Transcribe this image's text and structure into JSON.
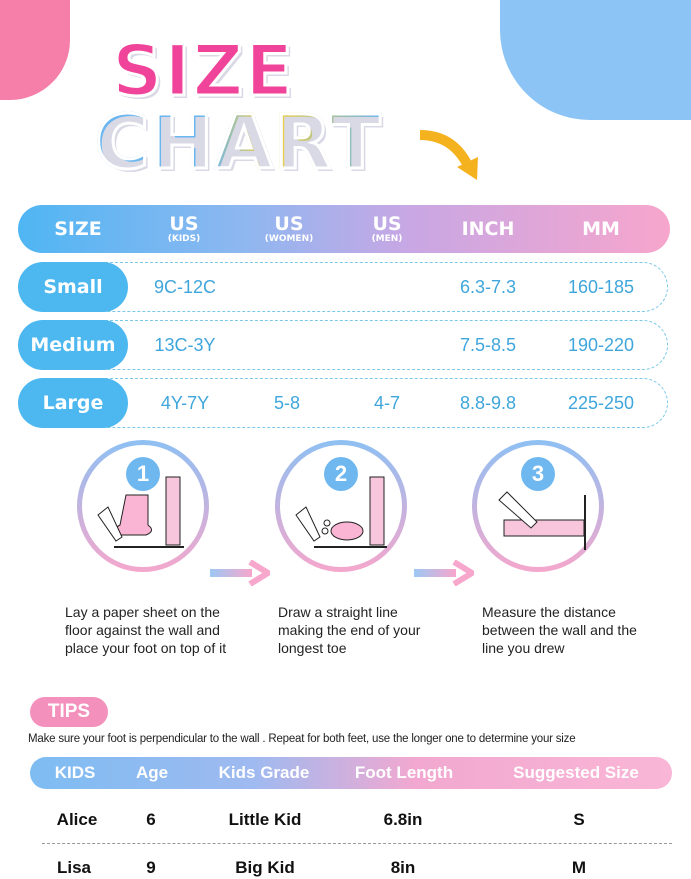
{
  "title": {
    "line1": "SIZE",
    "line2": "CHART"
  },
  "size_table": {
    "headers": [
      {
        "main": "SIZE",
        "sub": ""
      },
      {
        "main": "US",
        "sub": "(KIDS)"
      },
      {
        "main": "US",
        "sub": "(WOMEN)"
      },
      {
        "main": "US",
        "sub": "(MEN)"
      },
      {
        "main": "INCH",
        "sub": ""
      },
      {
        "main": "MM",
        "sub": ""
      }
    ],
    "rows": [
      {
        "size": "Small",
        "us_kids": "9C-12C",
        "us_women": "",
        "us_men": "",
        "inch": "6.3-7.3",
        "mm": "160-185"
      },
      {
        "size": "Medium",
        "us_kids": "13C-3Y",
        "us_women": "",
        "us_men": "",
        "inch": "7.5-8.5",
        "mm": "190-220"
      },
      {
        "size": "Large",
        "us_kids": "4Y-7Y",
        "us_women": "5-8",
        "us_men": "4-7",
        "inch": "8.8-9.8",
        "mm": "225-250"
      }
    ]
  },
  "steps": [
    {
      "number": "1",
      "text": "Lay a paper sheet on the floor against the wall and place your foot on top of it"
    },
    {
      "number": "2",
      "text": "Draw a straight line making the end of your longest toe"
    },
    {
      "number": "3",
      "text": "Measure the distance between the wall and the line you drew"
    }
  ],
  "tips": {
    "label": "TIPS",
    "text": "Make sure your foot is perpendicular to the wall . Repeat for both feet, use the longer one to determine your size"
  },
  "examples": {
    "headers": [
      "KIDS",
      "Age",
      "Kids Grade",
      "Foot Length",
      "Suggested Size"
    ],
    "rows": [
      [
        "Alice",
        "6",
        "Little Kid",
        "6.8in",
        "S"
      ],
      [
        "Lisa",
        "9",
        "Big Kid",
        "8in",
        "M"
      ]
    ]
  },
  "colors": {
    "blue": "#4db8f0",
    "pink": "#f490bc",
    "text_blue": "#3fa6dc"
  }
}
